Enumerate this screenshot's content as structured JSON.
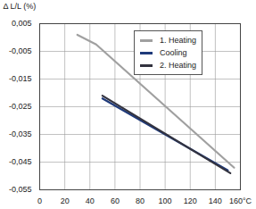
{
  "chart_data": {
    "type": "line",
    "y_label": "Δ L/L (%)",
    "xlim": [
      0,
      160
    ],
    "xticks": [
      0,
      20,
      40,
      60,
      80,
      100,
      120,
      140,
      {
        "value": 160,
        "label": "160°C"
      }
    ],
    "ylim": [
      -0.055,
      0.005
    ],
    "yticks": [
      {
        "value": 0.005,
        "label": "0,005"
      },
      {
        "value": -0.005,
        "label": "-0,005"
      },
      {
        "value": -0.015,
        "label": "-0,015"
      },
      {
        "value": -0.025,
        "label": "-0,025"
      },
      {
        "value": -0.035,
        "label": "-0,035"
      },
      {
        "value": -0.045,
        "label": "-0,045"
      },
      {
        "value": -0.055,
        "label": "-0,055"
      }
    ],
    "grid": true,
    "legend": "top-right",
    "series": [
      {
        "name": "1. Heating",
        "color": "#a0a0a0",
        "x": [
          30,
          45,
          155
        ],
        "values": [
          0.001,
          -0.0025,
          -0.047
        ]
      },
      {
        "name": "Cooling",
        "color": "#1f3a7a",
        "x": [
          50,
          150
        ],
        "values": [
          -0.022,
          -0.048
        ]
      },
      {
        "name": "2. Heating",
        "color": "#33333f",
        "x": [
          50,
          152
        ],
        "values": [
          -0.021,
          -0.049
        ]
      }
    ]
  }
}
